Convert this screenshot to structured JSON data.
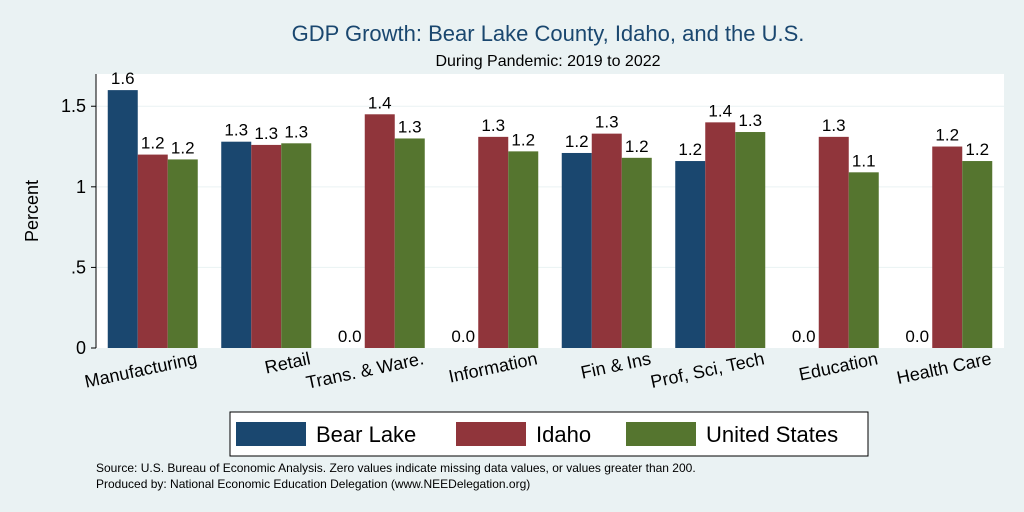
{
  "chart_data": {
    "type": "bar",
    "title": "GDP Growth: Bear Lake County, Idaho, and the U.S.",
    "subtitle": "During Pandemic: 2019 to 2022",
    "xlabel": "",
    "ylabel": "Percent",
    "ylim": [
      0,
      1.7
    ],
    "yticks": [
      {
        "value": 0,
        "label": "0"
      },
      {
        "value": 0.5,
        "label": ".5"
      },
      {
        "value": 1,
        "label": "1"
      },
      {
        "value": 1.5,
        "label": "1.5"
      }
    ],
    "grid": true,
    "legend_position": "bottom",
    "categories": [
      "Manufacturing",
      "Retail",
      "Trans. & Ware.",
      "Information",
      "Fin & Ins",
      "Prof, Sci, Tech",
      "Education",
      "Health Care"
    ],
    "series": [
      {
        "name": "Bear Lake",
        "color": "#1a476f",
        "values": [
          1.6,
          1.28,
          0.0,
          0.0,
          1.21,
          1.16,
          0.0,
          0.0
        ],
        "labels": [
          "1.6",
          "1.3",
          "0.0",
          "0.0",
          "1.2",
          "1.2",
          "0.0",
          "0.0"
        ]
      },
      {
        "name": "Idaho",
        "color": "#90353b",
        "values": [
          1.2,
          1.26,
          1.45,
          1.31,
          1.33,
          1.4,
          1.31,
          1.25
        ],
        "labels": [
          "1.2",
          "1.3",
          "1.4",
          "1.3",
          "1.3",
          "1.4",
          "1.3",
          "1.2"
        ]
      },
      {
        "name": "United States",
        "color": "#55752f",
        "values": [
          1.17,
          1.27,
          1.3,
          1.22,
          1.18,
          1.34,
          1.09,
          1.16
        ],
        "labels": [
          "1.2",
          "1.3",
          "1.3",
          "1.2",
          "1.2",
          "1.3",
          "1.1",
          "1.2"
        ]
      }
    ],
    "notes": [
      "Source: U.S. Bureau of Economic Analysis. Zero values indicate missing data values, or values greater than 200.",
      "Produced by: National Economic Education Delegation (www.NEEDelegation.org)"
    ]
  }
}
